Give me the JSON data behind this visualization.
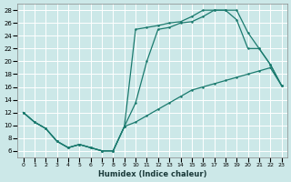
{
  "xlabel": "Humidex (Indice chaleur)",
  "bg_color": "#cce8e8",
  "grid_color": "#ffffff",
  "line_color": "#1a7a6e",
  "xlim": [
    -0.5,
    23.5
  ],
  "ylim": [
    5,
    29
  ],
  "xticks": [
    0,
    1,
    2,
    3,
    4,
    5,
    6,
    7,
    8,
    9,
    10,
    11,
    12,
    13,
    14,
    15,
    16,
    17,
    18,
    19,
    20,
    21,
    22,
    23
  ],
  "yticks": [
    6,
    8,
    10,
    12,
    14,
    16,
    18,
    20,
    22,
    24,
    26,
    28
  ],
  "lineA_x": [
    0,
    1,
    2,
    3,
    4,
    5,
    6,
    7,
    8,
    9,
    10,
    11,
    12,
    13,
    14,
    15,
    16,
    17,
    18,
    19,
    20,
    21,
    22,
    23
  ],
  "lineA_y": [
    12,
    10.5,
    9.5,
    7.5,
    6.5,
    7,
    6.5,
    6,
    6,
    9.8,
    25,
    25.3,
    25.6,
    26.0,
    26.2,
    27.0,
    28,
    28,
    28,
    26.5,
    22,
    22,
    19.5,
    16.2
  ],
  "lineB_x": [
    0,
    1,
    2,
    3,
    4,
    5,
    6,
    7,
    8,
    9,
    10,
    11,
    12,
    13,
    14,
    15,
    16,
    17,
    18,
    19,
    20,
    21,
    22,
    23
  ],
  "lineB_y": [
    12,
    10.5,
    9.5,
    7.5,
    6.5,
    7,
    6.5,
    6,
    6,
    9.8,
    13.5,
    20,
    25,
    25.3,
    26.0,
    26.2,
    27,
    28,
    28,
    28,
    24.5,
    22,
    19.5,
    16.2
  ],
  "lineC_x": [
    0,
    1,
    2,
    3,
    4,
    5,
    6,
    7,
    8,
    9,
    10,
    11,
    12,
    13,
    14,
    15,
    16,
    17,
    18,
    19,
    20,
    21,
    22,
    23
  ],
  "lineC_y": [
    12,
    10.5,
    9.5,
    7.5,
    6.5,
    7,
    6.5,
    6,
    6,
    9.8,
    10.5,
    11.5,
    12.5,
    13.5,
    14.5,
    15.5,
    16.0,
    16.5,
    17.0,
    17.5,
    18,
    18.5,
    19,
    16.2
  ]
}
